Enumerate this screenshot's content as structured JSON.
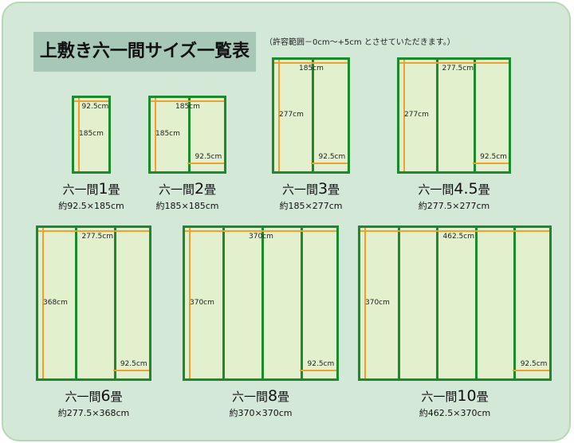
{
  "title": "上敷き六一間サイズ一覧表",
  "note": "（許容範囲－0cm～+5cm とさせていただきます。）",
  "colors": {
    "mat_fill": "#e3f0cd",
    "mat_border": "#1b8a2c",
    "arrow": "#f0a030",
    "panel": "#d4e8d8",
    "title_bg": "#a7c8b7"
  },
  "mats": [
    {
      "prefix": "六一間",
      "count": "1",
      "suffix": "畳",
      "size": "約92.5×185cm",
      "width_label": "92.5cm",
      "height_label": "185cm",
      "panels": 1
    },
    {
      "prefix": "六一間",
      "count": "2",
      "suffix": "畳",
      "size": "約185×185cm",
      "width_label": "185cm",
      "height_label": "185cm",
      "panel_label": "92.5cm",
      "panels": 2
    },
    {
      "prefix": "六一間",
      "count": "3",
      "suffix": "畳",
      "size": "約185×277cm",
      "width_label": "185cm",
      "height_label": "277cm",
      "panel_label": "92.5cm",
      "panels": 2
    },
    {
      "prefix": "六一間",
      "count": "4.5",
      "suffix": "畳",
      "size": "約277.5×277cm",
      "width_label": "277.5cm",
      "height_label": "277cm",
      "panel_label": "92.5cm",
      "panels": 3
    },
    {
      "prefix": "六一間",
      "count": "6",
      "suffix": "畳",
      "size": "約277.5×368cm",
      "width_label": "277.5cm",
      "height_label": "368cm",
      "panel_label": "92.5cm",
      "panels": 3
    },
    {
      "prefix": "六一間",
      "count": "8",
      "suffix": "畳",
      "size": "約370×370cm",
      "width_label": "370cm",
      "height_label": "370cm",
      "panel_label": "92.5cm",
      "panels": 4
    },
    {
      "prefix": "六一間",
      "count": "10",
      "suffix": "畳",
      "size": "約462.5×370cm",
      "width_label": "462.5cm",
      "height_label": "370cm",
      "panel_label": "92.5cm",
      "panels": 5
    }
  ]
}
